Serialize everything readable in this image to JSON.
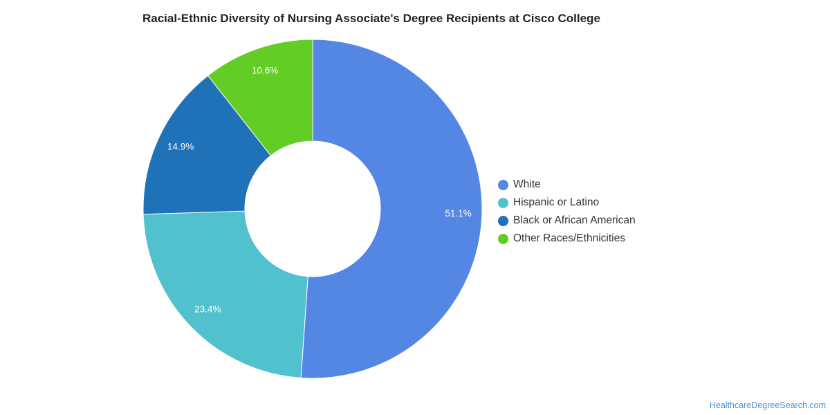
{
  "chart_data": {
    "type": "pie",
    "variant": "donut",
    "title": "Racial-Ethnic Diversity of Nursing Associate's Degree Recipients at Cisco College",
    "categories": [
      "White",
      "Hispanic or Latino",
      "Black or African American",
      "Other Races/Ethnicities"
    ],
    "values": [
      51.1,
      23.4,
      14.9,
      10.6
    ],
    "labels": [
      "51.1%",
      "23.4%",
      "14.9%",
      "10.6%"
    ],
    "colors": [
      "#5486e3",
      "#52c1ce",
      "#1f71b8",
      "#62cd24"
    ],
    "legend_position": "right"
  },
  "footer": {
    "source": "HealthcareDegreeSearch.com"
  }
}
